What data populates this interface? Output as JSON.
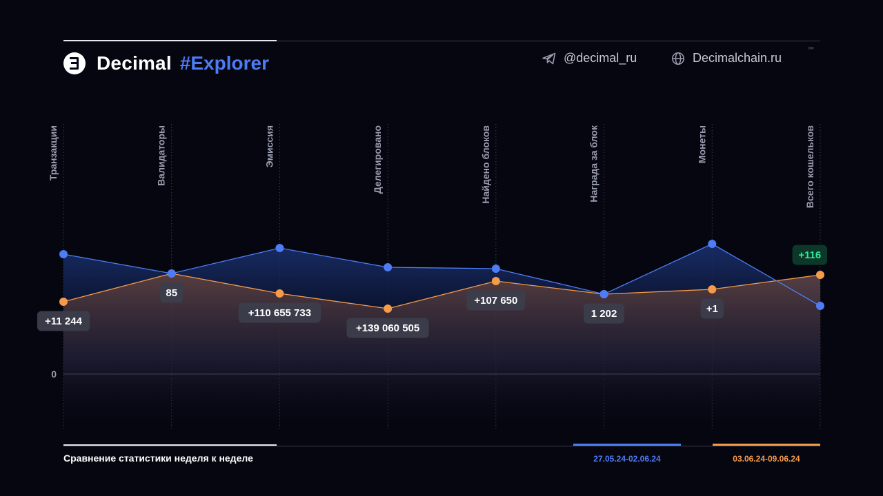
{
  "header": {
    "brand": "Decimal",
    "brand_tag": "#Explorer",
    "telegram": "@decimal_ru",
    "website": "Decimalchain.ru"
  },
  "footer": {
    "caption": "Сравнение статистики неделя к неделе"
  },
  "colors": {
    "background": "#05060f",
    "series_1": "#4d7cf5",
    "series_2": "#f59b4a",
    "positive_badge": "#2fe89a"
  },
  "chart_data": {
    "type": "line",
    "normalized": true,
    "zero_label": "0",
    "categories": [
      "Транзакции",
      "Валидаторы",
      "Эмиссия",
      "Делегировано",
      "Найдено блоков",
      "Награда за блок",
      "Монеты",
      "Всего кошельков"
    ],
    "series": [
      {
        "name": "27.05.24-02.06.24",
        "color": "#4d7cf5",
        "values": [
          174,
          146,
          183,
          155,
          153,
          116,
          189,
          99
        ]
      },
      {
        "name": "03.06.24-09.06.24",
        "color": "#f59b4a",
        "values": [
          105,
          146,
          117,
          95,
          135,
          116,
          123,
          144
        ]
      }
    ],
    "annotations": [
      "+11 244",
      "85",
      "+110 655 733",
      "+139 060 505",
      "+107 650",
      "1 202",
      "+1",
      "+116"
    ],
    "annotation_highlight": [
      false,
      false,
      false,
      false,
      false,
      false,
      false,
      true
    ]
  }
}
